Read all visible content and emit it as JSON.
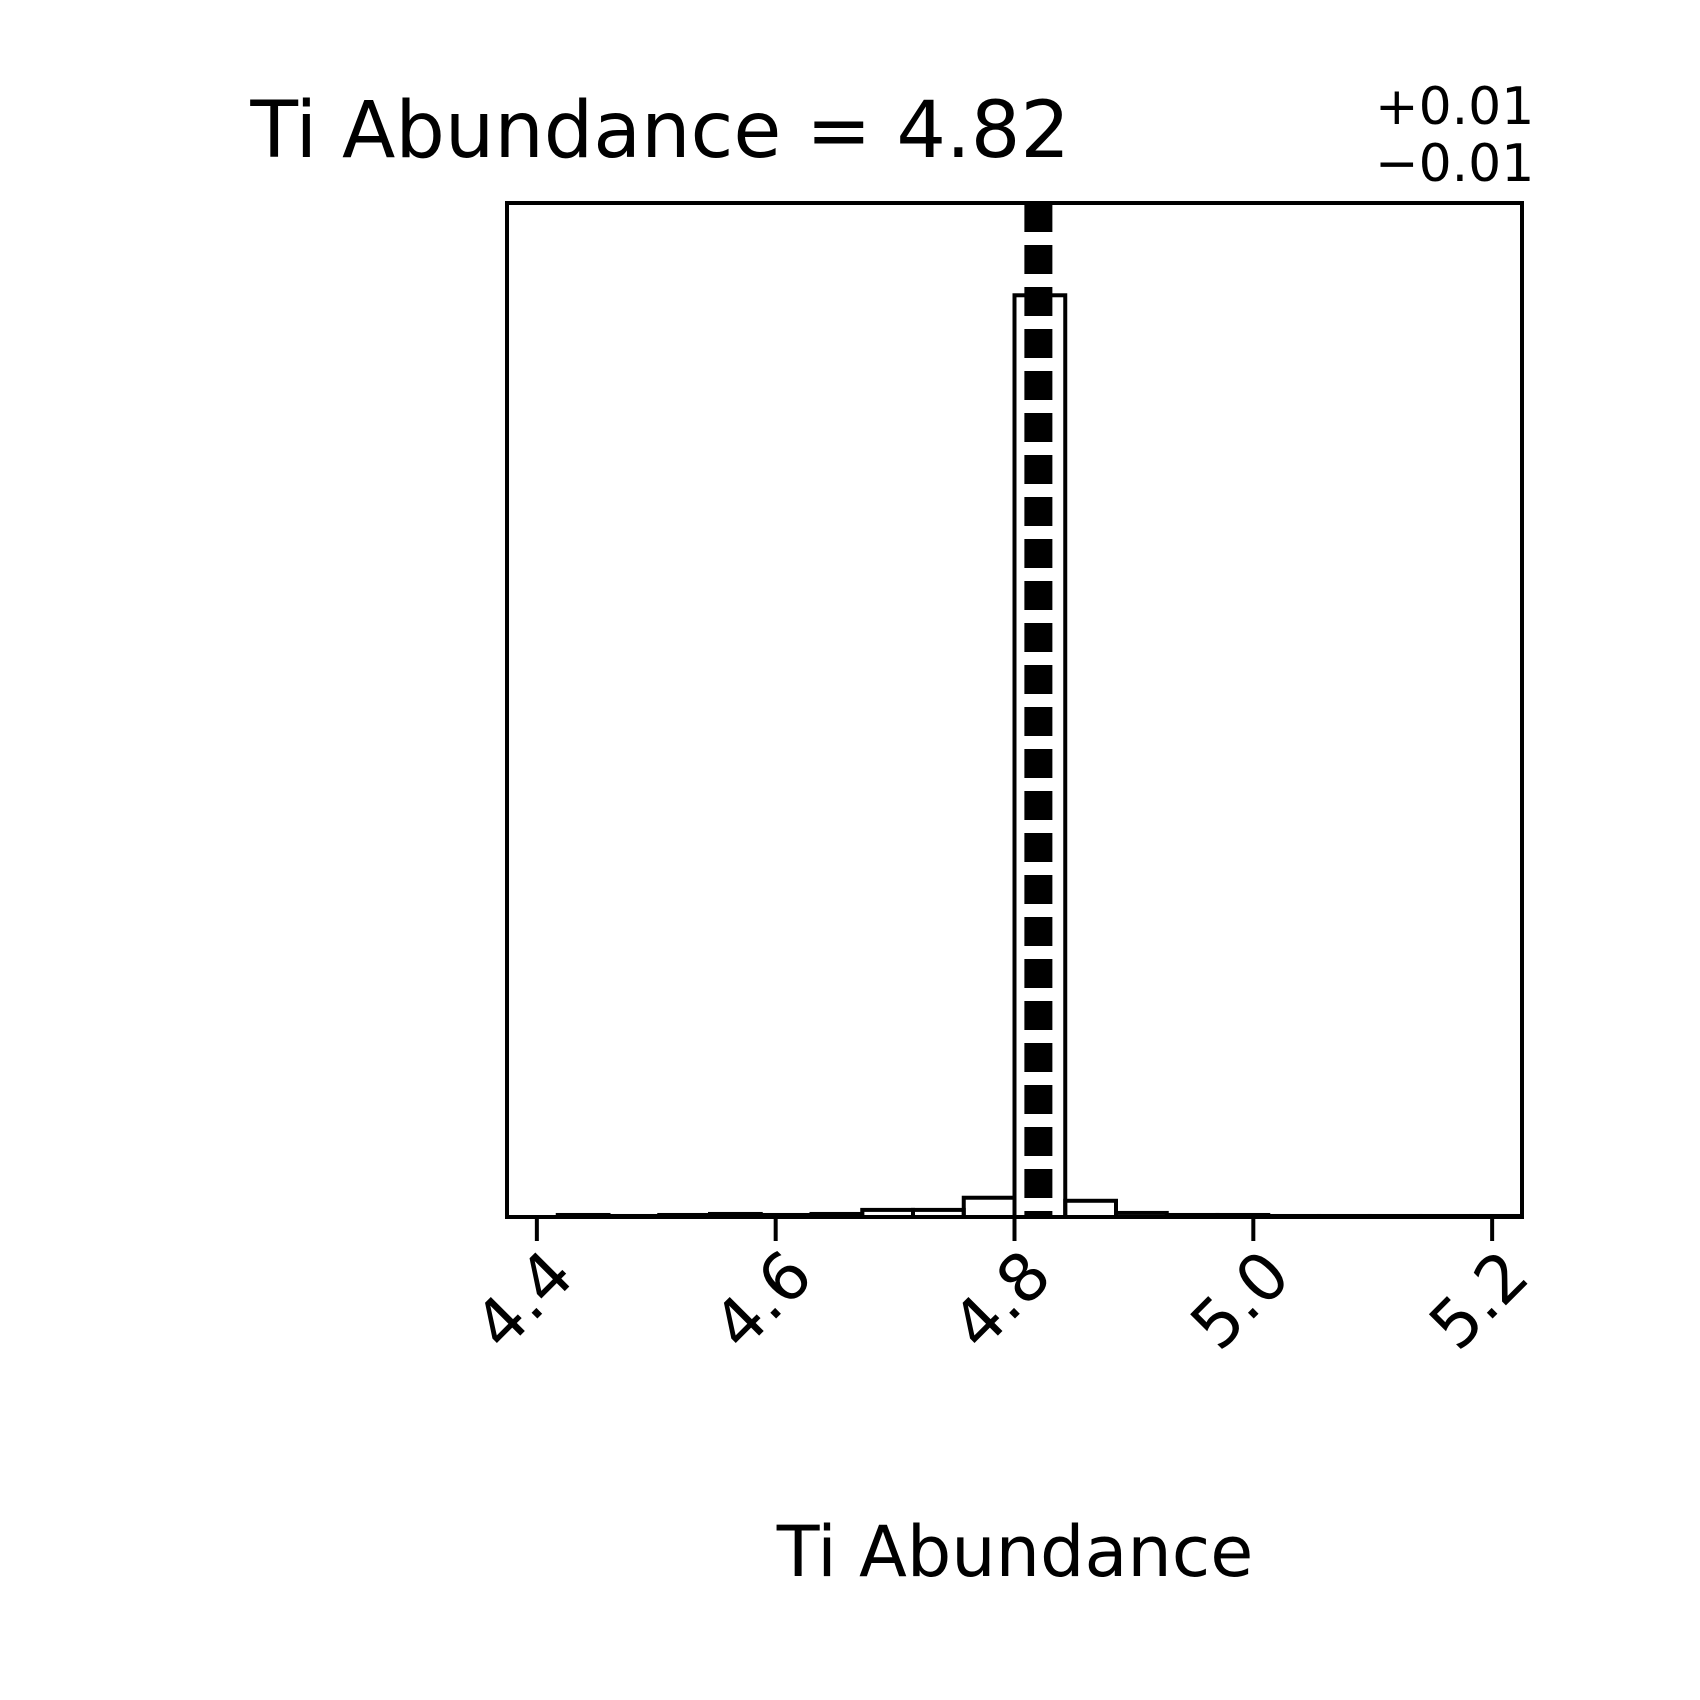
{
  "chart_data": {
    "type": "bar",
    "title": {
      "label": "Ti Abundance = 4.82",
      "upper": "+0.01",
      "lower": "−0.01"
    },
    "xlabel": "Ti Abundance",
    "ylabel": "",
    "xlim": [
      4.375,
      5.225
    ],
    "ylim": [
      0,
      1.0
    ],
    "xticks": [
      4.4,
      4.6,
      4.8,
      5.0,
      5.2
    ],
    "xtick_labels": [
      "4.4",
      "4.6",
      "4.8",
      "5.0",
      "5.2"
    ],
    "bin_edges": [
      4.375,
      4.4175,
      4.46,
      4.5025,
      4.545,
      4.5875,
      4.63,
      4.6725,
      4.715,
      4.7575,
      4.8,
      4.8425,
      4.885,
      4.9275,
      4.97,
      5.0125,
      5.055,
      5.0975,
      5.14,
      5.1825,
      5.225
    ],
    "values": [
      0.0,
      0.002,
      0.001,
      0.002,
      0.003,
      0.002,
      0.003,
      0.007,
      0.007,
      0.019,
      0.909,
      0.016,
      0.004,
      0.002,
      0.002,
      0.001,
      0.001,
      0.001,
      0.001,
      0.001
    ],
    "median_line": 4.82,
    "grid": false,
    "legend": "none",
    "colors": {
      "line": "#000000",
      "background": "#ffffff"
    }
  }
}
